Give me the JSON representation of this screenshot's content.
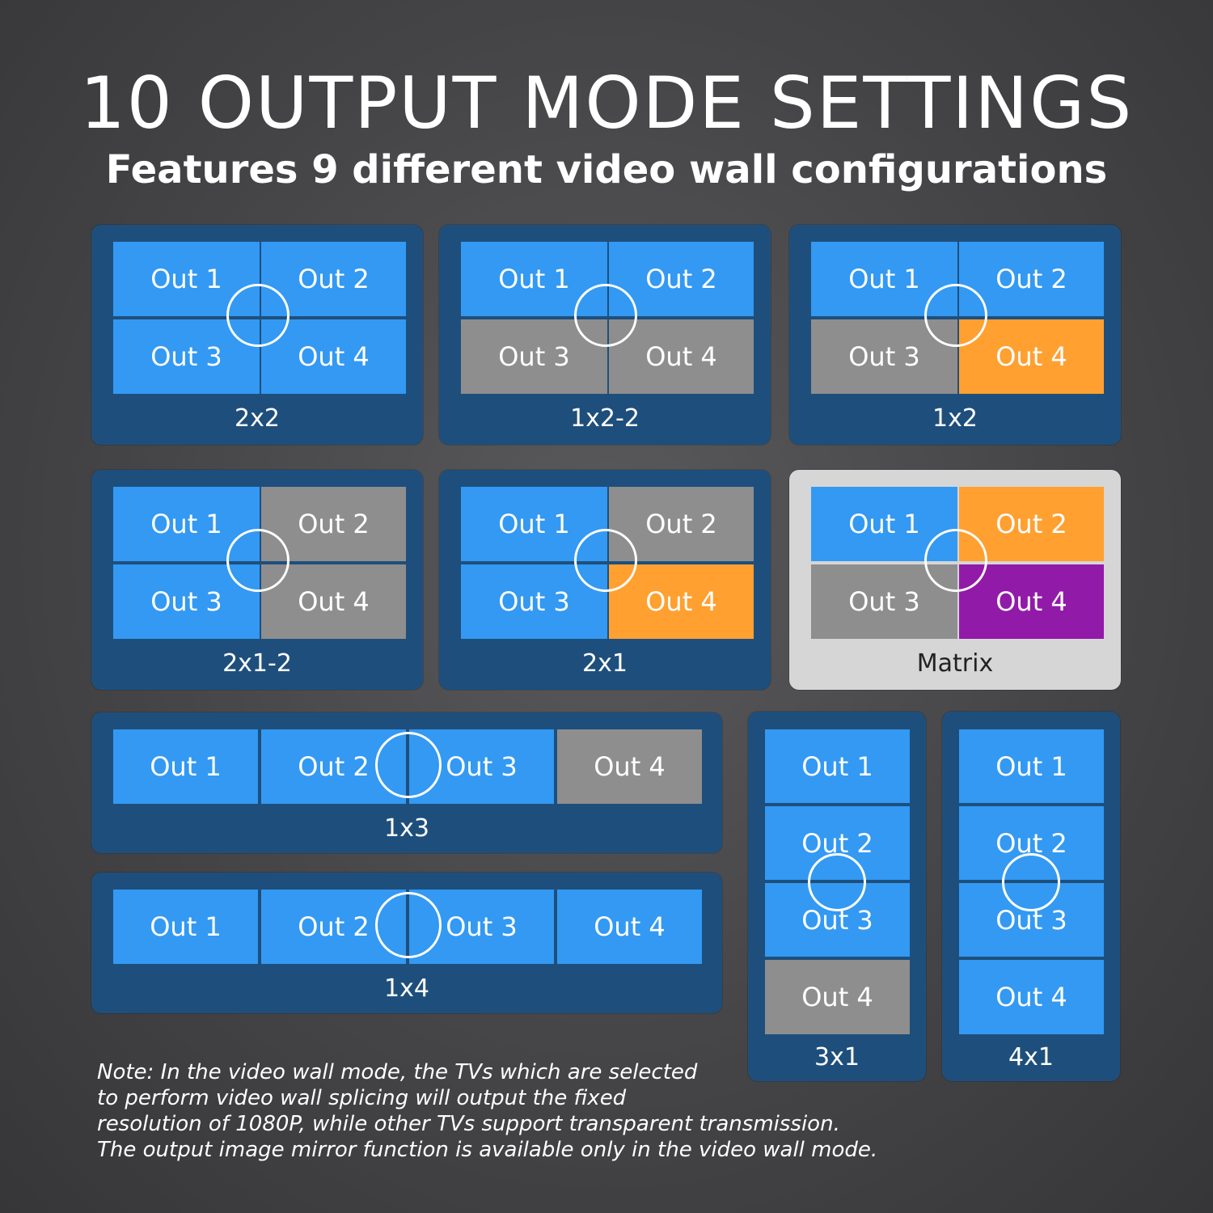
{
  "header": {
    "title": "10 OUTPUT MODE SETTINGS",
    "subtitle": "Features 9 different video wall configurations"
  },
  "tile_labels": {
    "out1": "Out 1",
    "out2": "Out 2",
    "out3": "Out 3",
    "out4": "Out 4"
  },
  "modes": {
    "m2x2": "2x2",
    "m1x2_2": "1x2-2",
    "m1x2": "1x2",
    "m2x1_2": "2x1-2",
    "m2x1": "2x1",
    "matrix": "Matrix",
    "m1x3": "1x3",
    "m1x4": "1x4",
    "m3x1": "3x1",
    "m4x1": "4x1"
  },
  "note": {
    "line1": "Note: In the video wall mode, the TVs which are selected",
    "line2": "to perform video wall splicing will output the fixed",
    "line3": "resolution of 1080P, while other TVs support transparent transmission.",
    "line4": "The output image mirror function is available only in the video wall mode."
  },
  "colors": {
    "panel": "#1e4f7c",
    "panel_selected": "#d6d6d6",
    "active": "#3399f3",
    "inactive": "#8e8e8e",
    "orange": "#ffa030",
    "purple": "#921aa8"
  }
}
